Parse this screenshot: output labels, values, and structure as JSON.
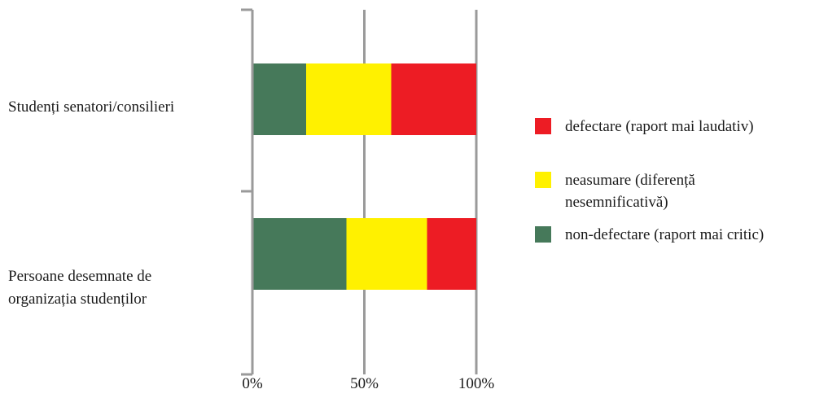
{
  "chart_data": {
    "type": "bar",
    "orientation": "horizontal",
    "stacked": true,
    "categories": [
      "Studenți senatori/consilieri",
      "Persoane desemnate de\norganizația studenților"
    ],
    "series": [
      {
        "name": "non-defectare (raport mai critic)",
        "color": "#46795a",
        "values": [
          24,
          42
        ]
      },
      {
        "name": "neasumare (diferență\nnesemnificativă)",
        "color": "#fff100",
        "values": [
          38,
          36
        ]
      },
      {
        "name": "defectare (raport mai laudativ)",
        "color": "#ed1c24",
        "values": [
          38,
          22
        ]
      }
    ],
    "x_ticks": [
      "0%",
      "50%",
      "100%"
    ],
    "xlim": [
      0,
      100
    ],
    "legend_position": "right",
    "legend_order": [
      2,
      1,
      0
    ],
    "grid": "vertical",
    "axis_color": "#9a9a9a"
  }
}
